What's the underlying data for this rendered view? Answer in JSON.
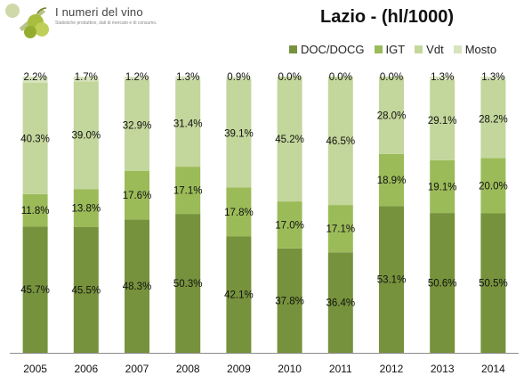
{
  "brand": {
    "name": "I numeri del vino",
    "tagline": "Statistiche produttive, dati di mercato e di consumo."
  },
  "legend": [
    {
      "label": "DOC/DOCG",
      "color": "#76923c"
    },
    {
      "label": "IGT",
      "color": "#9bbb59"
    },
    {
      "label": "Vdt",
      "color": "#c3d69b"
    },
    {
      "label": "Mosto",
      "color": "#d7e4bc"
    }
  ],
  "chart_data": {
    "type": "bar",
    "stacked": true,
    "normalized": true,
    "title": "Lazio - (hl/1000)",
    "categories": [
      "2005",
      "2006",
      "2007",
      "2008",
      "2009",
      "2010",
      "2011",
      "2012",
      "2013",
      "2014"
    ],
    "series": [
      {
        "name": "DOC/DOCG",
        "color": "#76923c",
        "values": [
          45.7,
          45.5,
          48.3,
          50.3,
          42.1,
          37.8,
          36.4,
          53.1,
          50.6,
          50.5
        ],
        "labels": [
          "45.7%",
          "45.5%",
          "48.3%",
          "50.3%",
          "42.1%",
          "37.8%",
          "36.4%",
          "53.1%",
          "50.6%",
          "50.5%"
        ]
      },
      {
        "name": "IGT",
        "color": "#9bbb59",
        "values": [
          11.8,
          13.8,
          17.6,
          17.1,
          17.8,
          17.0,
          17.1,
          18.9,
          19.1,
          20.0
        ],
        "labels": [
          "11.8%",
          "13.8%",
          "17.6%",
          "17.1%",
          "17.8%",
          "17.0%",
          "17.1%",
          "18.9%",
          "19.1%",
          "20.0%"
        ]
      },
      {
        "name": "Vdt",
        "color": "#c3d69b",
        "values": [
          40.3,
          39.0,
          32.9,
          31.4,
          39.1,
          45.2,
          46.5,
          28.0,
          29.1,
          28.2
        ],
        "labels": [
          "40.3%",
          "39.0%",
          "32.9%",
          "31.4%",
          "39.1%",
          "45.2%",
          "46.5%",
          "28.0%",
          "29.1%",
          "28.2%"
        ]
      },
      {
        "name": "Mosto",
        "color": "#d7e4bc",
        "values": [
          2.2,
          1.7,
          1.2,
          1.3,
          0.9,
          0.0,
          0.0,
          0.0,
          1.3,
          1.3
        ],
        "labels": [
          "2.2%",
          "1.7%",
          "1.2%",
          "1.3%",
          "0.9%",
          "0.0%",
          "0.0%",
          "0.0%",
          "1.3%",
          "1.3%"
        ]
      }
    ],
    "ylim": [
      0,
      100
    ],
    "grid": false,
    "legend_position": "top-right"
  }
}
